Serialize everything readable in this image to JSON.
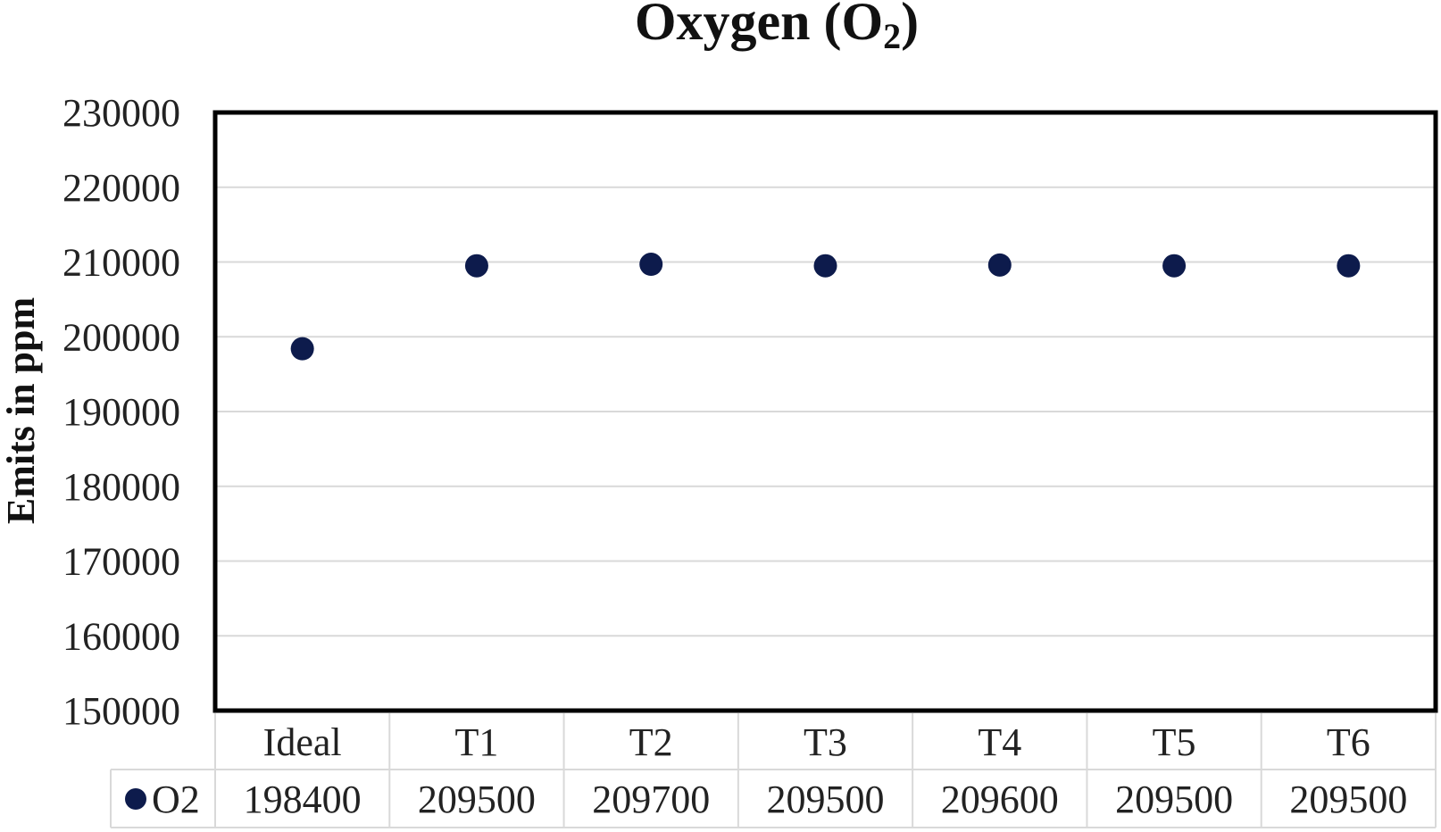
{
  "chart_data": {
    "type": "scatter",
    "title": "Oxygen (O",
    "title_subscript": "2",
    "title_suffix": ")",
    "ylabel": "Emits  in ppm",
    "xlabel": "",
    "categories": [
      "Ideal",
      "T1",
      "T2",
      "T3",
      "T4",
      "T5",
      "T6"
    ],
    "series": [
      {
        "name": "O2",
        "color": "#0d1b4c",
        "values": [
          198400,
          209500,
          209700,
          209500,
          209600,
          209500,
          209500
        ],
        "value_labels": [
          "198400",
          "209500",
          "209700",
          "209500",
          "209600",
          "209500",
          "209500"
        ]
      }
    ],
    "ylim": [
      150000,
      230000
    ],
    "yticks": [
      150000,
      160000,
      170000,
      180000,
      190000,
      200000,
      210000,
      220000,
      230000
    ],
    "ytick_labels": [
      "150000",
      "160000",
      "170000",
      "180000",
      "190000",
      "200000",
      "210000",
      "220000",
      "230000"
    ],
    "grid": true,
    "legend": "data-table",
    "colors": {
      "marker": "#0d1b4c",
      "grid": "#d9d9d9",
      "frame": "#000000"
    }
  }
}
